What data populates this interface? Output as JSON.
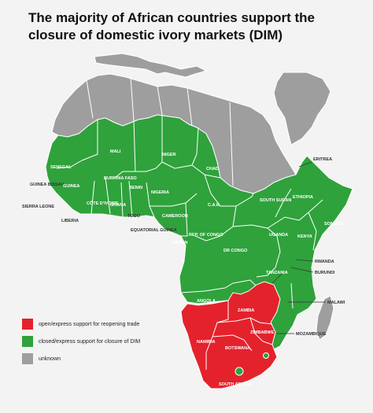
{
  "title": "The majority of African countries support the closure of domestic ivory markets (DIM)",
  "colors": {
    "red": "#e4222c",
    "green": "#2fa23c",
    "unknown": "#9e9e9e",
    "background": "#f3f3f3",
    "border": "#ffffff"
  },
  "legend": [
    {
      "label": "open/express support for reopening trade",
      "color": "#e4222c"
    },
    {
      "label": "closed/express support for closure of DIM",
      "color": "#2fa23c"
    },
    {
      "label": "unknown",
      "color": "#9e9e9e"
    }
  ],
  "countries": [
    {
      "name": "MALI",
      "status": "closure"
    },
    {
      "name": "NIGER",
      "status": "closure"
    },
    {
      "name": "CHAD",
      "status": "closure"
    },
    {
      "name": "SENEGAL",
      "status": "closure"
    },
    {
      "name": "GUINEA BISSAU",
      "status": "closure"
    },
    {
      "name": "GUINEA",
      "status": "closure"
    },
    {
      "name": "SIERRA LEONE",
      "status": "closure"
    },
    {
      "name": "LIBERIA",
      "status": "closure"
    },
    {
      "name": "CÔTE D'IVOIRE",
      "status": "closure"
    },
    {
      "name": "BURKINA FASO",
      "status": "closure"
    },
    {
      "name": "GHANA",
      "status": "closure"
    },
    {
      "name": "TOGO",
      "status": "closure"
    },
    {
      "name": "BENIN",
      "status": "closure"
    },
    {
      "name": "NIGERIA",
      "status": "closure"
    },
    {
      "name": "CAMEROON",
      "status": "closure"
    },
    {
      "name": "EQUATORIAL GUINEA",
      "status": "closure"
    },
    {
      "name": "GABON",
      "status": "closure"
    },
    {
      "name": "REP. OF CONGO",
      "status": "closure"
    },
    {
      "name": "C.A.R",
      "status": "closure"
    },
    {
      "name": "SOUTH SUDAN",
      "status": "closure"
    },
    {
      "name": "ERITREA",
      "status": "closure"
    },
    {
      "name": "ETHIOPIA",
      "status": "closure"
    },
    {
      "name": "SOMALIA",
      "status": "closure"
    },
    {
      "name": "KENYA",
      "status": "closure"
    },
    {
      "name": "UGANDA",
      "status": "closure"
    },
    {
      "name": "RWANDA",
      "status": "closure"
    },
    {
      "name": "BURUNDI",
      "status": "closure"
    },
    {
      "name": "TANZANIA",
      "status": "closure"
    },
    {
      "name": "DR CONGO",
      "status": "closure"
    },
    {
      "name": "ANGOLA",
      "status": "closure"
    },
    {
      "name": "MALAWI",
      "status": "closure"
    },
    {
      "name": "MOZAMBIQUE",
      "status": "closure"
    },
    {
      "name": "ZAMBIA",
      "status": "reopening"
    },
    {
      "name": "ZIMBABWE",
      "status": "reopening"
    },
    {
      "name": "NAMIBIA",
      "status": "reopening"
    },
    {
      "name": "BOTSWANA",
      "status": "reopening"
    },
    {
      "name": "SOUTH AFRICA",
      "status": "reopening"
    }
  ]
}
